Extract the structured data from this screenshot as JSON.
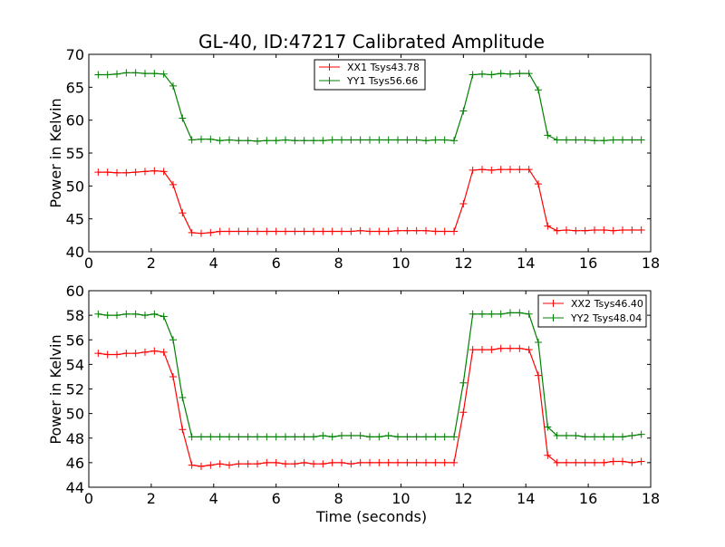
{
  "chart_data": [
    {
      "type": "line",
      "title": "GL-40, ID:47217 Calibrated Amplitude",
      "xlabel": "",
      "ylabel": "Power in Kelvin",
      "xlim": [
        0,
        18
      ],
      "ylim": [
        40,
        70
      ],
      "xticks": [
        "0",
        "2",
        "4",
        "6",
        "8",
        "10",
        "12",
        "14",
        "16",
        "18"
      ],
      "yticks": [
        "40",
        "45",
        "50",
        "55",
        "60",
        "65",
        "70"
      ],
      "legend_position": "top-center",
      "x": [
        0.3,
        0.6,
        0.9,
        1.2,
        1.5,
        1.8,
        2.1,
        2.4,
        2.7,
        3.0,
        3.3,
        3.6,
        3.9,
        4.2,
        4.5,
        4.8,
        5.1,
        5.4,
        5.7,
        6.0,
        6.3,
        6.6,
        6.9,
        7.2,
        7.5,
        7.8,
        8.1,
        8.4,
        8.7,
        9.0,
        9.3,
        9.6,
        9.9,
        10.2,
        10.5,
        10.8,
        11.1,
        11.4,
        11.7,
        12.0,
        12.3,
        12.6,
        12.9,
        13.2,
        13.5,
        13.8,
        14.1,
        14.4,
        14.7,
        15.0,
        15.3,
        15.6,
        15.9,
        16.2,
        16.5,
        16.8,
        17.1,
        17.4,
        17.7
      ],
      "series": [
        {
          "name": "XX1 Tsys43.78",
          "color": "#ff0000",
          "values": [
            52.1,
            52.1,
            52.0,
            52.0,
            52.1,
            52.2,
            52.3,
            52.2,
            50.2,
            45.9,
            42.9,
            42.8,
            42.9,
            43.1,
            43.1,
            43.1,
            43.1,
            43.1,
            43.1,
            43.1,
            43.1,
            43.1,
            43.1,
            43.1,
            43.1,
            43.1,
            43.1,
            43.1,
            43.2,
            43.1,
            43.1,
            43.1,
            43.2,
            43.2,
            43.2,
            43.2,
            43.1,
            43.1,
            43.1,
            47.3,
            52.4,
            52.5,
            52.4,
            52.5,
            52.5,
            52.5,
            52.5,
            50.3,
            43.9,
            43.2,
            43.3,
            43.2,
            43.2,
            43.3,
            43.3,
            43.2,
            43.3,
            43.3,
            43.3
          ]
        },
        {
          "name": "YY1 Tsys56.66",
          "color": "#008000",
          "values": [
            66.9,
            66.9,
            67.0,
            67.2,
            67.2,
            67.1,
            67.1,
            67.0,
            65.2,
            60.3,
            57.0,
            57.1,
            57.1,
            56.9,
            57.0,
            56.9,
            56.9,
            56.8,
            56.9,
            56.9,
            57.0,
            56.9,
            56.9,
            56.9,
            56.9,
            57.0,
            57.0,
            57.0,
            57.0,
            57.0,
            57.0,
            57.0,
            57.0,
            57.0,
            57.0,
            56.9,
            57.0,
            57.0,
            56.9,
            61.4,
            66.9,
            67.0,
            66.9,
            67.1,
            67.0,
            67.1,
            67.1,
            64.6,
            57.7,
            57.0,
            57.0,
            57.0,
            57.0,
            56.9,
            56.9,
            57.0,
            57.0,
            57.0,
            57.0
          ]
        }
      ]
    },
    {
      "type": "line",
      "title": "",
      "xlabel": "Time (seconds)",
      "ylabel": "Power in Kelvin",
      "xlim": [
        0,
        18
      ],
      "ylim": [
        44,
        60
      ],
      "xticks": [
        "0",
        "2",
        "4",
        "6",
        "8",
        "10",
        "12",
        "14",
        "16",
        "18"
      ],
      "yticks": [
        "44",
        "46",
        "48",
        "50",
        "52",
        "54",
        "56",
        "58",
        "60"
      ],
      "legend_position": "top-right",
      "x": [
        0.3,
        0.6,
        0.9,
        1.2,
        1.5,
        1.8,
        2.1,
        2.4,
        2.7,
        3.0,
        3.3,
        3.6,
        3.9,
        4.2,
        4.5,
        4.8,
        5.1,
        5.4,
        5.7,
        6.0,
        6.3,
        6.6,
        6.9,
        7.2,
        7.5,
        7.8,
        8.1,
        8.4,
        8.7,
        9.0,
        9.3,
        9.6,
        9.9,
        10.2,
        10.5,
        10.8,
        11.1,
        11.4,
        11.7,
        12.0,
        12.3,
        12.6,
        12.9,
        13.2,
        13.5,
        13.8,
        14.1,
        14.4,
        14.7,
        15.0,
        15.3,
        15.6,
        15.9,
        16.2,
        16.5,
        16.8,
        17.1,
        17.4,
        17.7
      ],
      "series": [
        {
          "name": "XX2 Tsys46.40",
          "color": "#ff0000",
          "values": [
            54.9,
            54.8,
            54.8,
            54.9,
            54.9,
            55.0,
            55.1,
            55.0,
            53.0,
            48.7,
            45.8,
            45.7,
            45.8,
            45.9,
            45.8,
            45.9,
            45.9,
            45.9,
            46.0,
            46.0,
            45.9,
            45.9,
            46.0,
            45.9,
            45.9,
            46.0,
            46.0,
            45.9,
            46.0,
            46.0,
            46.0,
            46.0,
            46.0,
            46.0,
            46.0,
            46.0,
            46.0,
            46.0,
            46.0,
            50.1,
            55.2,
            55.2,
            55.2,
            55.3,
            55.3,
            55.3,
            55.2,
            53.1,
            46.6,
            46.0,
            46.0,
            46.0,
            46.0,
            46.0,
            46.0,
            46.1,
            46.1,
            46.0,
            46.1
          ]
        },
        {
          "name": "YY2 Tsys48.04",
          "color": "#008000",
          "values": [
            58.1,
            58.0,
            58.0,
            58.1,
            58.1,
            58.0,
            58.1,
            57.9,
            56.0,
            51.3,
            48.1,
            48.1,
            48.1,
            48.1,
            48.1,
            48.1,
            48.1,
            48.1,
            48.1,
            48.1,
            48.1,
            48.1,
            48.1,
            48.1,
            48.2,
            48.1,
            48.2,
            48.2,
            48.2,
            48.1,
            48.1,
            48.2,
            48.1,
            48.1,
            48.1,
            48.1,
            48.1,
            48.1,
            48.1,
            52.5,
            58.1,
            58.1,
            58.1,
            58.1,
            58.2,
            58.2,
            58.1,
            55.8,
            48.9,
            48.2,
            48.2,
            48.2,
            48.1,
            48.1,
            48.1,
            48.1,
            48.1,
            48.2,
            48.3
          ]
        }
      ]
    }
  ]
}
